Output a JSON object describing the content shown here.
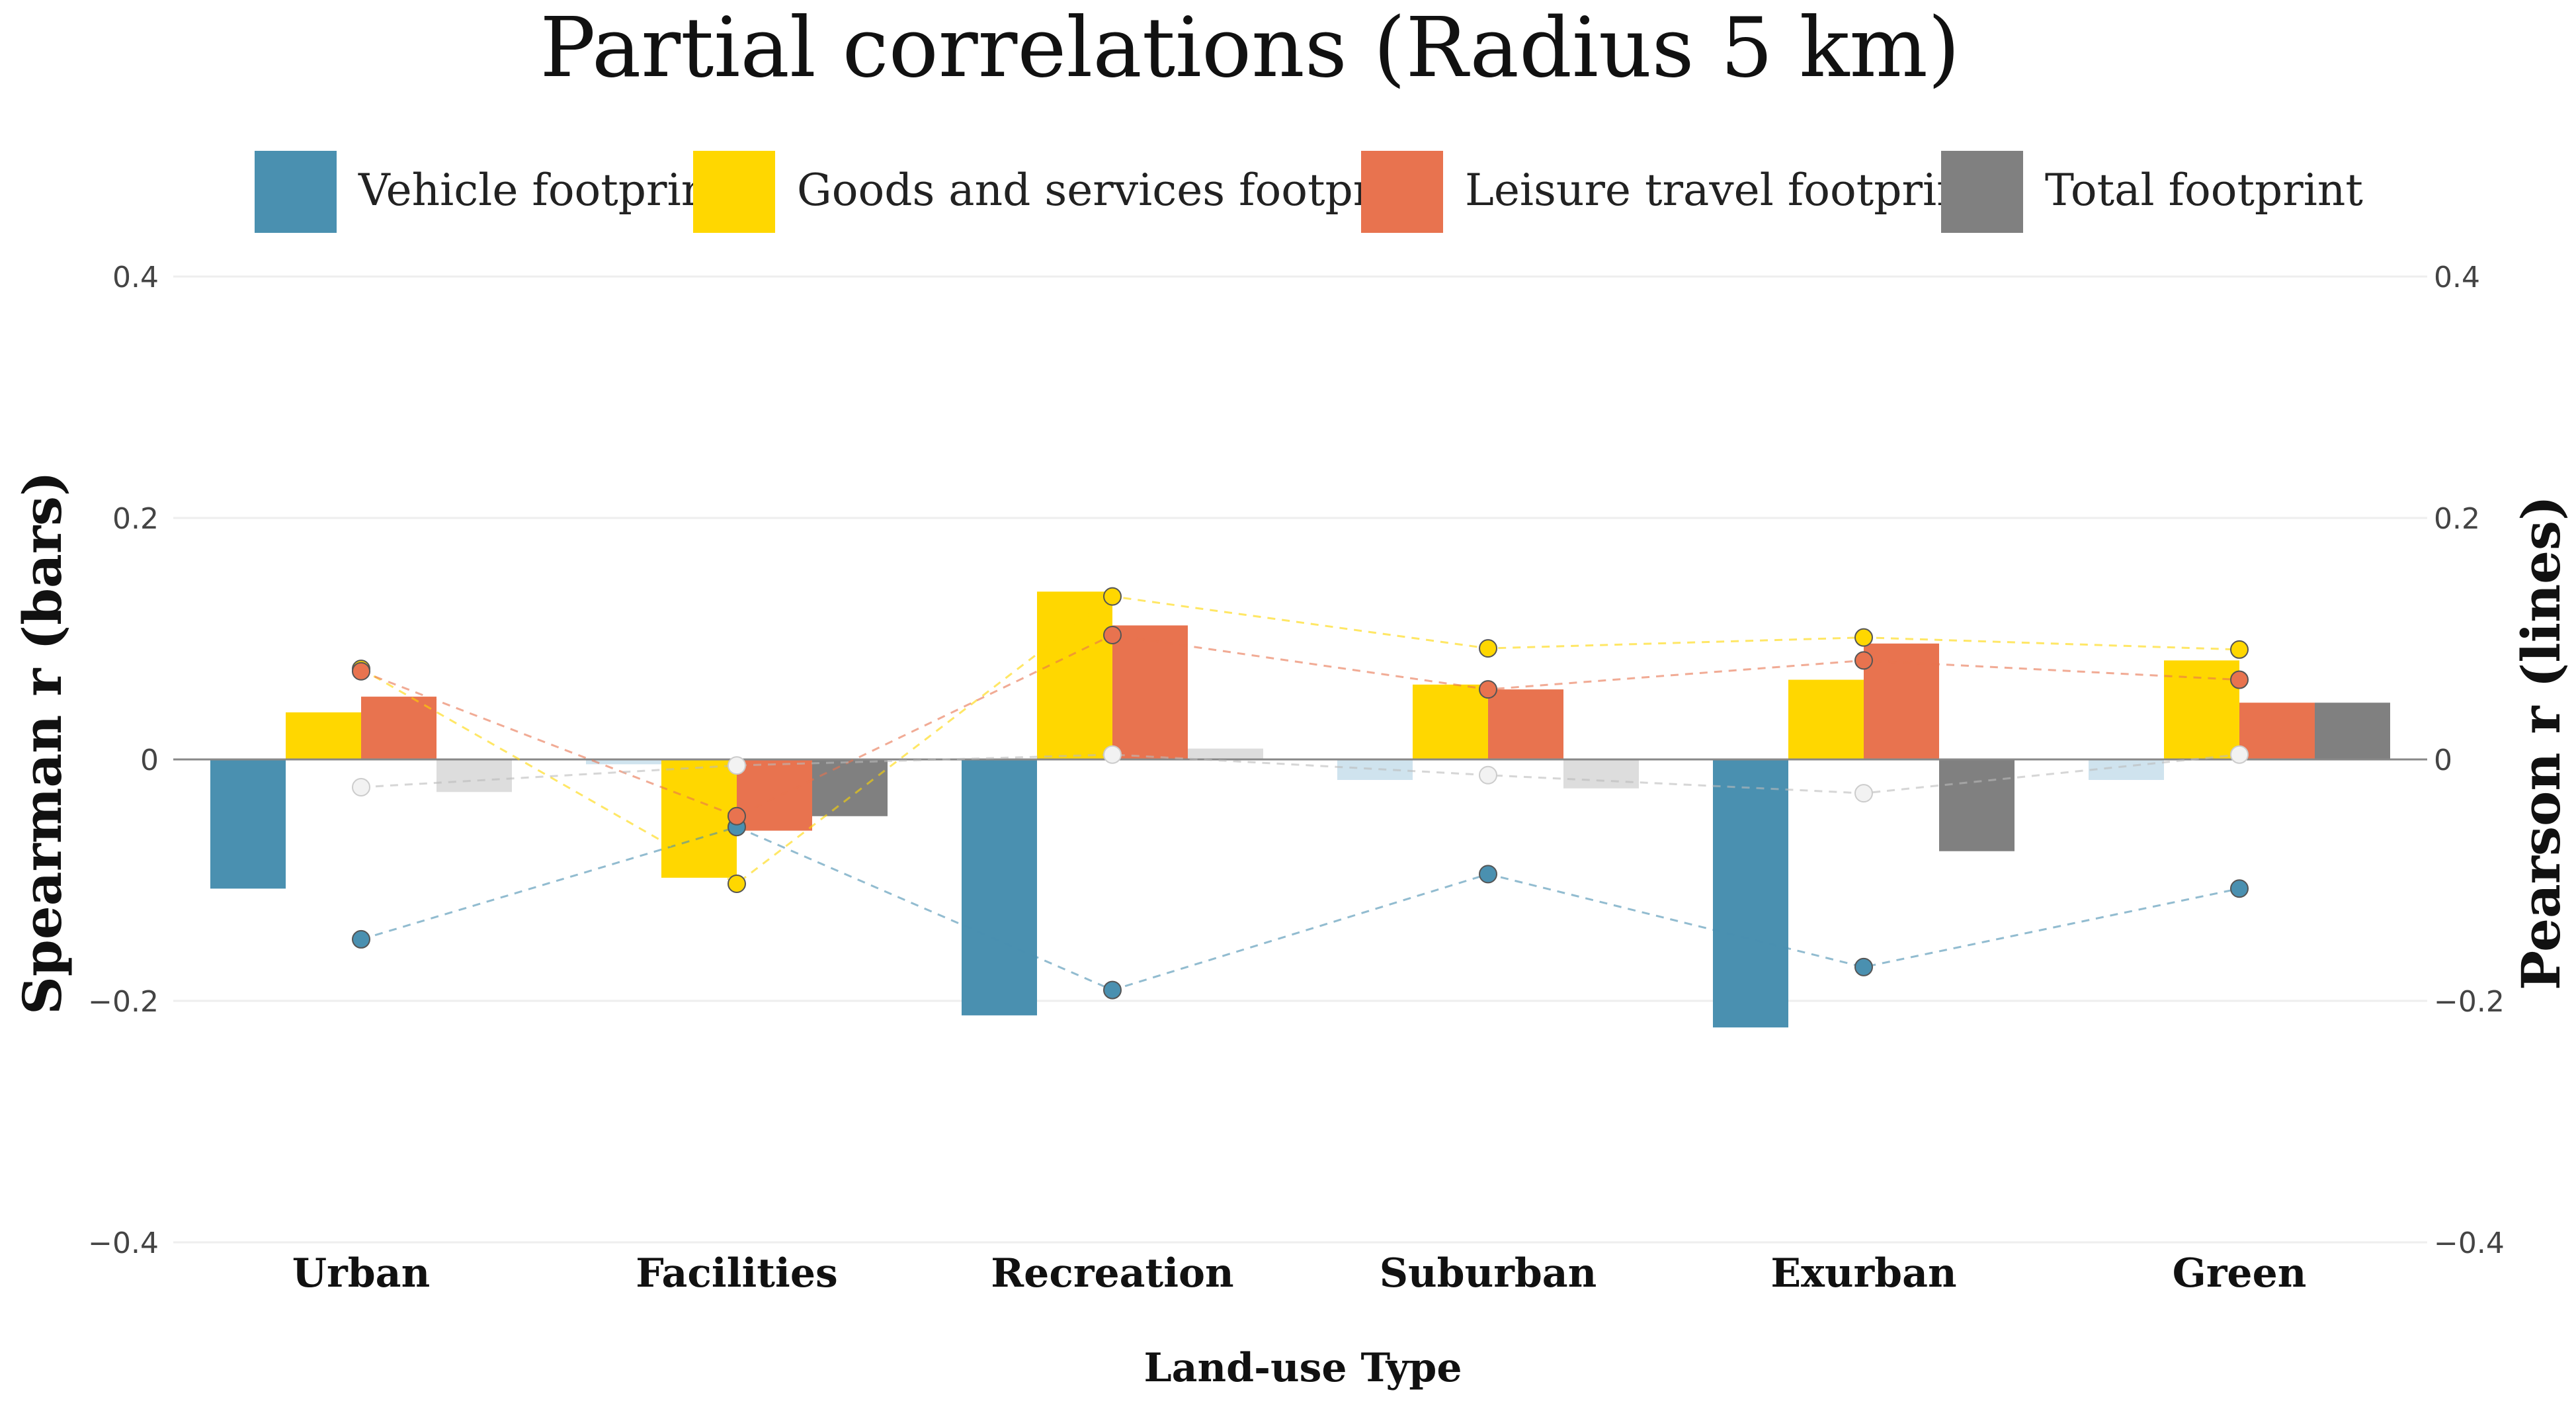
{
  "chart_data": {
    "type": "bar",
    "title": "Partial correlations (Radius 5 km)",
    "xlabel": "Land-use Type",
    "ylabel_left": "Spearman r (bars)",
    "ylabel_right": "Pearson r (lines)",
    "ylim": [
      -0.4,
      0.4
    ],
    "yticks": [
      0.4,
      0.2,
      0,
      -0.2,
      -0.4
    ],
    "ytick_labels": [
      "0.4",
      "0.2",
      "0",
      "−0.2",
      "−0.4"
    ],
    "grid": true,
    "legend_position": "top",
    "categories": [
      "Urban",
      "Facilities",
      "Recreation",
      "Suburban",
      "Exurban",
      "Green"
    ],
    "series": [
      {
        "name": "Vehicle footprint",
        "color": "#4a90b0",
        "color_faded": "#cfe3ee",
        "bars": [
          -0.107,
          -0.004,
          -0.212,
          -0.017,
          -0.222,
          -0.017
        ],
        "bar_significant": [
          true,
          false,
          true,
          false,
          true,
          false
        ],
        "lines": [
          -0.149,
          -0.056,
          -0.191,
          -0.095,
          -0.172,
          -0.107
        ]
      },
      {
        "name": "Goods and services footprint",
        "color": "#ffd700",
        "color_faded": "#fff3b0",
        "bars": [
          0.039,
          -0.098,
          0.139,
          0.062,
          0.066,
          0.082
        ],
        "bar_significant": [
          true,
          true,
          true,
          true,
          true,
          true
        ],
        "lines": [
          0.075,
          -0.103,
          0.135,
          0.092,
          0.101,
          0.091
        ]
      },
      {
        "name": "Leisure travel footprint",
        "color": "#e8734f",
        "color_faded": "#f6cdbd",
        "bars": [
          0.052,
          -0.059,
          0.111,
          0.058,
          0.096,
          0.047
        ],
        "bar_significant": [
          true,
          true,
          true,
          true,
          true,
          true
        ],
        "lines": [
          0.073,
          -0.047,
          0.103,
          0.058,
          0.082,
          0.066
        ]
      },
      {
        "name": "Total footprint",
        "color": "#808080",
        "color_faded": "#dddddd",
        "bars": [
          -0.027,
          -0.047,
          0.009,
          -0.024,
          -0.076,
          0.047
        ],
        "bar_significant": [
          false,
          true,
          false,
          false,
          true,
          true
        ],
        "lines": [
          -0.023,
          -0.005,
          0.004,
          -0.013,
          -0.028,
          0.004
        ]
      }
    ]
  }
}
